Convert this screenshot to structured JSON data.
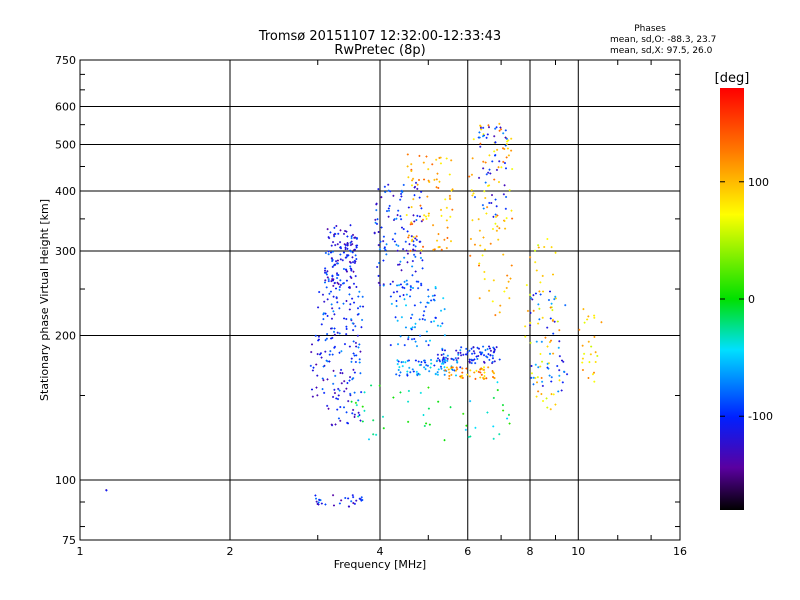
{
  "title_line1": "Tromsø 20151107 12:32:00-12:33:43",
  "title_line2": "RwPretec (8p)",
  "stats": {
    "header": "Phases",
    "line_o": "mean, sd,O: -88.3, 23.7",
    "line_x": "mean, sd,X:  97.5, 26.0"
  },
  "colorbar": {
    "label": "[deg]",
    "ticks": [
      "100",
      "0",
      "-100"
    ],
    "tick_values": [
      100,
      0,
      -100
    ],
    "range": [
      -180,
      180
    ]
  },
  "chart_data": {
    "type": "scatter",
    "xlabel": "Frequency [MHz]",
    "ylabel": "Stationary phase Virtual Height [km]",
    "x_scale": "log",
    "y_scale": "log",
    "xlim": [
      1,
      16
    ],
    "ylim": [
      75,
      750
    ],
    "x_ticks": [
      1,
      2,
      4,
      6,
      8,
      10,
      16
    ],
    "x_tick_labels": [
      "1",
      "2",
      "4",
      "6",
      "8",
      "10",
      "16"
    ],
    "y_ticks": [
      75,
      100,
      200,
      300,
      400,
      500,
      600,
      750
    ],
    "y_tick_labels": [
      "75",
      "100",
      "200",
      "300",
      "400",
      "500",
      "600",
      "750"
    ],
    "grid": true,
    "color_variable": "phase [deg]",
    "clusters": [
      {
        "x_range": [
          3.1,
          3.6
        ],
        "y_range": [
          250,
          340
        ],
        "phase": -110,
        "n": 140
      },
      {
        "x_range": [
          3.0,
          3.7
        ],
        "y_range": [
          175,
          250
        ],
        "phase": -100,
        "n": 90
      },
      {
        "x_range": [
          3.2,
          3.7
        ],
        "y_range": [
          130,
          175
        ],
        "phase": -105,
        "n": 50
      },
      {
        "x_range": [
          2.9,
          3.2
        ],
        "y_range": [
          140,
          200
        ],
        "phase": -110,
        "n": 30
      },
      {
        "x_range": [
          3.9,
          4.9
        ],
        "y_range": [
          250,
          420
        ],
        "phase": -100,
        "n": 120
      },
      {
        "x_range": [
          4.2,
          5.4
        ],
        "y_range": [
          190,
          260
        ],
        "phase": -80,
        "n": 80
      },
      {
        "x_range": [
          4.5,
          5.6
        ],
        "y_range": [
          300,
          480
        ],
        "phase": 110,
        "n": 80
      },
      {
        "x_range": [
          5.2,
          7.0
        ],
        "y_range": [
          175,
          190
        ],
        "phase": -100,
        "n": 90
      },
      {
        "x_range": [
          4.3,
          5.8
        ],
        "y_range": [
          165,
          178
        ],
        "phase": -70,
        "n": 70
      },
      {
        "x_range": [
          5.4,
          6.8
        ],
        "y_range": [
          162,
          172
        ],
        "phase": 110,
        "n": 50
      },
      {
        "x_range": [
          6.0,
          7.4
        ],
        "y_range": [
          220,
          560
        ],
        "phase": 100,
        "n": 90
      },
      {
        "x_range": [
          6.2,
          7.2
        ],
        "y_range": [
          350,
          550
        ],
        "phase": -100,
        "n": 50
      },
      {
        "x_range": [
          7.8,
          9.2
        ],
        "y_range": [
          140,
          320
        ],
        "phase": 90,
        "n": 60
      },
      {
        "x_range": [
          8.0,
          9.5
        ],
        "y_range": [
          150,
          250
        ],
        "phase": -90,
        "n": 50
      },
      {
        "x_range": [
          10.0,
          11.3
        ],
        "y_range": [
          160,
          230
        ],
        "phase": 90,
        "n": 25
      },
      {
        "x_range": [
          3.5,
          7.5
        ],
        "y_range": [
          120,
          160
        ],
        "phase": -20,
        "n": 50
      },
      {
        "x_range": [
          2.9,
          3.7
        ],
        "y_range": [
          88,
          93
        ],
        "phase": -110,
        "n": 30
      },
      {
        "x_range": [
          1.12,
          1.14
        ],
        "y_range": [
          95,
          96
        ],
        "phase": -110,
        "n": 2
      }
    ]
  }
}
